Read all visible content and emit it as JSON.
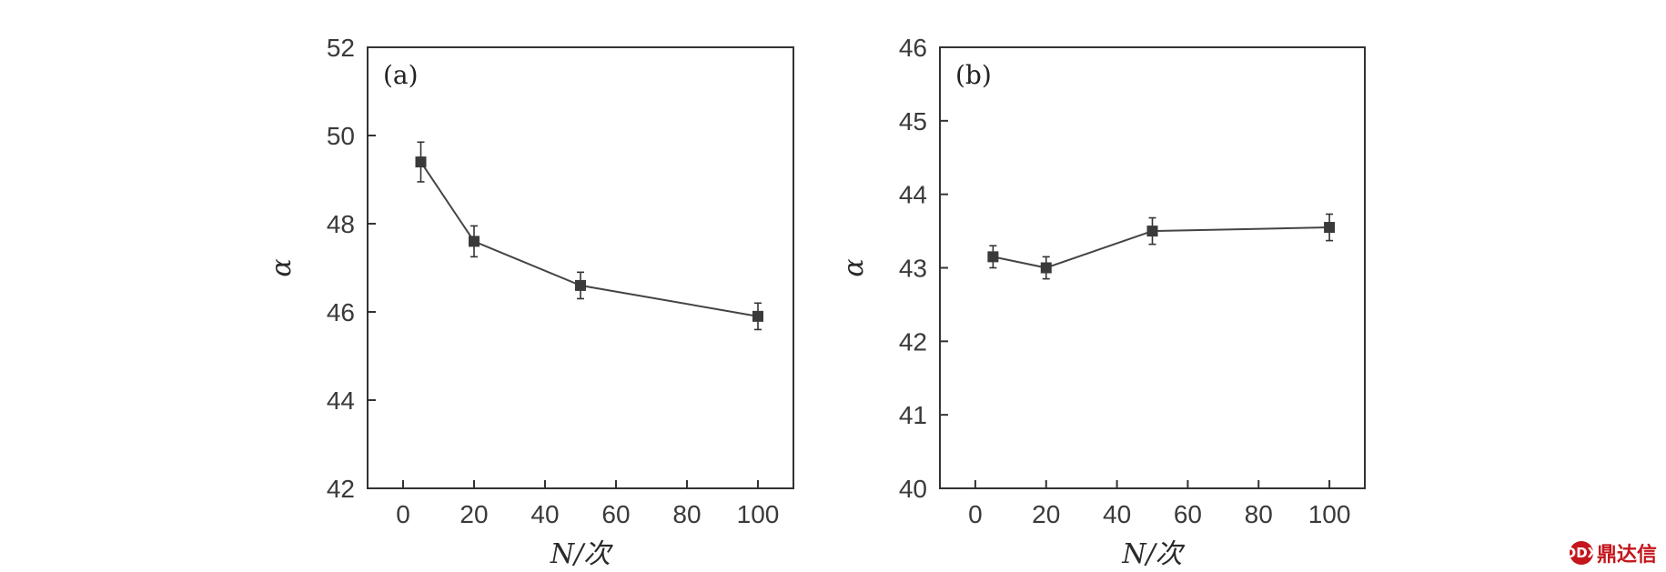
{
  "chart_data": [
    {
      "type": "line",
      "panel_label": "(a)",
      "xlabel": "N/次",
      "ylabel": "α",
      "xlim": [
        -10,
        110
      ],
      "ylim": [
        42,
        52
      ],
      "x_ticks": [
        0,
        20,
        40,
        60,
        80,
        100
      ],
      "y_ticks": [
        42,
        44,
        46,
        48,
        50,
        52
      ],
      "grid": false,
      "series": [
        {
          "x": [
            5,
            20,
            50,
            100
          ],
          "values": [
            49.4,
            47.6,
            46.6,
            45.9
          ],
          "error": [
            0.45,
            0.35,
            0.3,
            0.3
          ],
          "marker": "square"
        }
      ]
    },
    {
      "type": "line",
      "panel_label": "(b)",
      "xlabel": "N/次",
      "ylabel": "α",
      "xlim": [
        -10,
        110
      ],
      "ylim": [
        40,
        46
      ],
      "x_ticks": [
        0,
        20,
        40,
        60,
        80,
        100
      ],
      "y_ticks": [
        40,
        41,
        42,
        43,
        44,
        45,
        46
      ],
      "grid": false,
      "series": [
        {
          "x": [
            5,
            20,
            50,
            100
          ],
          "values": [
            43.15,
            43.0,
            43.5,
            43.55
          ],
          "error": [
            0.15,
            0.15,
            0.18,
            0.18
          ],
          "marker": "square"
        }
      ]
    }
  ],
  "watermark": {
    "text": "鼎达信",
    "badge": "DDX",
    "color": "#c4161c"
  }
}
